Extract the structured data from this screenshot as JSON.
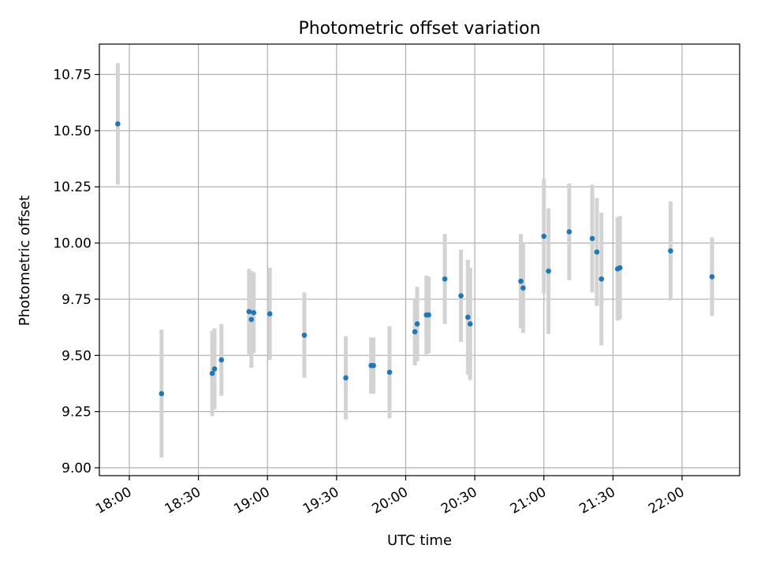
{
  "chart_data": {
    "type": "scatter",
    "title": "Photometric offset variation",
    "xlabel": "UTC time",
    "ylabel": "Photometric offset",
    "xlim": [
      "17:47",
      "22:25"
    ],
    "ylim": [
      8.965,
      10.885
    ],
    "x_ticks": [
      "18:00",
      "18:30",
      "19:00",
      "19:30",
      "20:00",
      "20:30",
      "21:00",
      "21:30",
      "22:00"
    ],
    "y_ticks": [
      "9.00",
      "9.25",
      "9.50",
      "9.75",
      "10.00",
      "10.25",
      "10.50",
      "10.75"
    ],
    "grid": true,
    "colors": {
      "points": "#1f77b4",
      "error_bars": "#d3d3d3",
      "grid": "#b0b0b0"
    },
    "points": [
      {
        "x": "17:55",
        "y": 10.53,
        "err": 0.27
      },
      {
        "x": "18:14",
        "y": 9.33,
        "err": 0.285
      },
      {
        "x": "18:36",
        "y": 9.42,
        "err": 0.19
      },
      {
        "x": "18:37",
        "y": 9.44,
        "err": 0.18
      },
      {
        "x": "18:40",
        "y": 9.48,
        "err": 0.16
      },
      {
        "x": "18:52",
        "y": 9.695,
        "err": 0.19
      },
      {
        "x": "18:53",
        "y": 9.66,
        "err": 0.215
      },
      {
        "x": "18:54",
        "y": 9.69,
        "err": 0.18
      },
      {
        "x": "19:01",
        "y": 9.685,
        "err": 0.205
      },
      {
        "x": "19:16",
        "y": 9.59,
        "err": 0.19
      },
      {
        "x": "19:34",
        "y": 9.4,
        "err": 0.185
      },
      {
        "x": "19:45",
        "y": 9.455,
        "err": 0.125
      },
      {
        "x": "19:46",
        "y": 9.455,
        "err": 0.125
      },
      {
        "x": "19:53",
        "y": 9.425,
        "err": 0.205
      },
      {
        "x": "20:04",
        "y": 9.605,
        "err": 0.15
      },
      {
        "x": "20:05",
        "y": 9.64,
        "err": 0.165
      },
      {
        "x": "20:09",
        "y": 9.68,
        "err": 0.175
      },
      {
        "x": "20:10",
        "y": 9.68,
        "err": 0.17
      },
      {
        "x": "20:17",
        "y": 9.84,
        "err": 0.2
      },
      {
        "x": "20:24",
        "y": 9.765,
        "err": 0.205
      },
      {
        "x": "20:27",
        "y": 9.67,
        "err": 0.255
      },
      {
        "x": "20:28",
        "y": 9.64,
        "err": 0.25
      },
      {
        "x": "20:50",
        "y": 9.83,
        "err": 0.21
      },
      {
        "x": "20:51",
        "y": 9.8,
        "err": 0.2
      },
      {
        "x": "21:00",
        "y": 10.03,
        "err": 0.255
      },
      {
        "x": "21:02",
        "y": 9.875,
        "err": 0.28
      },
      {
        "x": "21:11",
        "y": 10.05,
        "err": 0.215
      },
      {
        "x": "21:21",
        "y": 10.02,
        "err": 0.24
      },
      {
        "x": "21:23",
        "y": 9.96,
        "err": 0.24
      },
      {
        "x": "21:25",
        "y": 9.84,
        "err": 0.295
      },
      {
        "x": "21:32",
        "y": 9.885,
        "err": 0.23
      },
      {
        "x": "21:33",
        "y": 9.89,
        "err": 0.23
      },
      {
        "x": "21:55",
        "y": 9.965,
        "err": 0.22
      },
      {
        "x": "22:13",
        "y": 9.85,
        "err": 0.175
      }
    ]
  }
}
